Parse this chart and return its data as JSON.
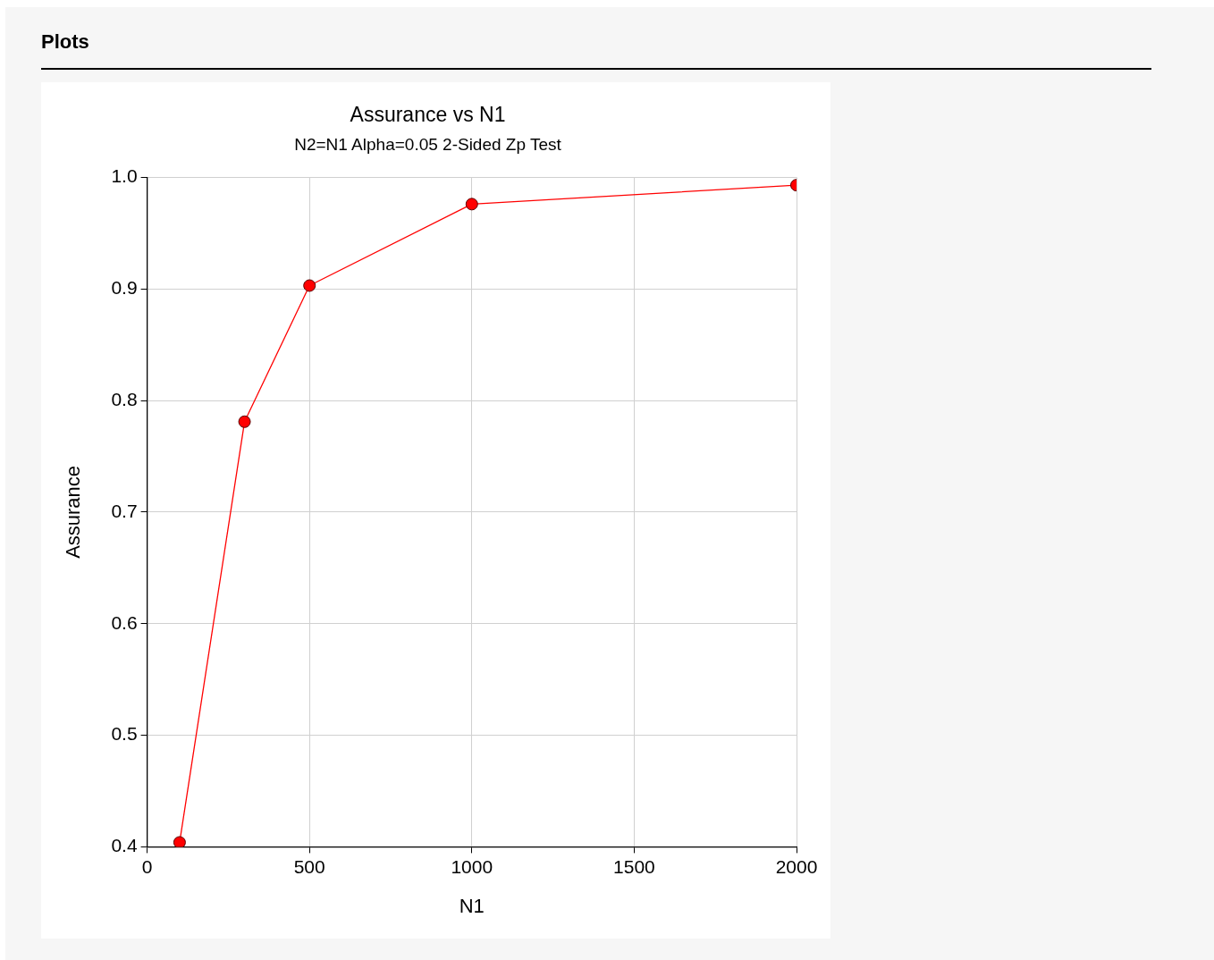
{
  "chart_data": {
    "type": "line",
    "title": "Assurance vs N1",
    "subtitle": "N2=N1 Alpha=0.05 2-Sided Zp Test",
    "xlabel": "N1",
    "ylabel": "Assurance",
    "annotations": [
      "Plots"
    ],
    "x": [
      100,
      300,
      500,
      1000,
      2000
    ],
    "series": [
      {
        "color": "#ff0000",
        "values": [
          0.404,
          0.781,
          0.903,
          0.976,
          0.993
        ]
      }
    ],
    "xlim": [
      0,
      2000
    ],
    "xticks": [
      0,
      500,
      1000,
      1500,
      2000
    ],
    "ylim": [
      0.4,
      1.0
    ],
    "yticks": [
      {
        "value": 0.4,
        "label": "0.4"
      },
      {
        "value": 0.5,
        "label": "0.5"
      },
      {
        "value": 0.6,
        "label": "0.6"
      },
      {
        "value": 0.7,
        "label": "0.7"
      },
      {
        "value": 0.8,
        "label": "0.8"
      },
      {
        "value": 0.9,
        "label": "0.9"
      },
      {
        "value": 1.0,
        "label": "1.0"
      }
    ],
    "grid": true,
    "marker": "circle",
    "line_style": "solid"
  }
}
